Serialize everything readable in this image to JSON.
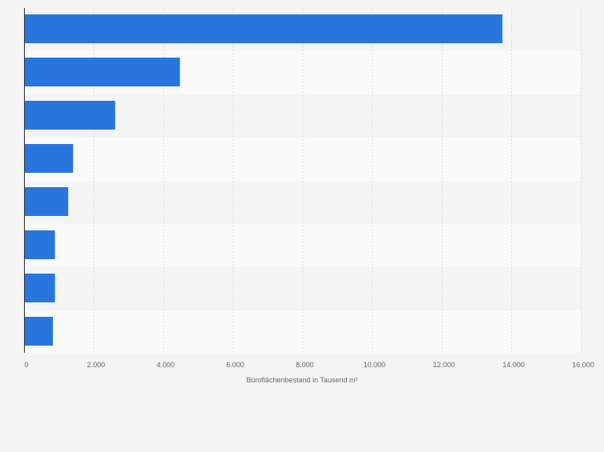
{
  "chart_data": {
    "type": "bar",
    "orientation": "horizontal",
    "categories": [
      "",
      "",
      "",
      "",
      "",
      "",
      "",
      ""
    ],
    "values": [
      13750,
      4480,
      2620,
      1410,
      1270,
      890,
      890,
      830
    ],
    "title": "",
    "xlabel": "Büroflächenbestand in Tausend m²",
    "ylabel": "",
    "xlim": [
      0,
      16000
    ],
    "xticks": [
      0,
      2000,
      4000,
      6000,
      8000,
      10000,
      12000,
      14000,
      16000
    ],
    "xtick_labels": [
      "0",
      "2.000",
      "4.000",
      "6.000",
      "8.000",
      "10.000",
      "12.000",
      "14.000",
      "16.000"
    ],
    "grid": true,
    "legend": "none",
    "colors": {
      "bar": "#2876dd",
      "background": "#f4f4f4",
      "band_light": "#fafafa",
      "band_dark": "#f4f4f4",
      "gridline": "#dcdcdc",
      "axis": "#333333",
      "tick_text": "#666666"
    }
  }
}
